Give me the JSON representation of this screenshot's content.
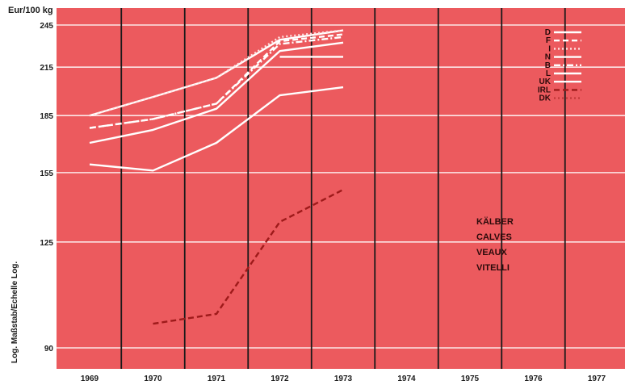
{
  "chart_data": {
    "type": "line",
    "y_unit_label": "Eur/100 kg",
    "y_scale_note": "Log. Maßstab/Echelle Log.",
    "y_scale": "log",
    "ylim": [
      85,
      252
    ],
    "y_ticks": [
      90,
      125,
      155,
      185,
      215,
      245
    ],
    "categories": [
      "1969",
      "1970",
      "1971",
      "1972",
      "1973",
      "1974",
      "1975",
      "1976",
      "1977"
    ],
    "product_labels": [
      "KÄLBER",
      "CALVES",
      "VEAUX",
      "VITELLI"
    ],
    "grid": "vertical year separators and horizontal lines at y ticks",
    "legend_position": "top-right",
    "background_color": "#ec5a5e",
    "series": [
      {
        "name": "D",
        "color": "#ffffff",
        "dash": "solid",
        "values": [
          185,
          196,
          208,
          234,
          241,
          null,
          null,
          null,
          null
        ]
      },
      {
        "name": "F",
        "color": "#ffffff",
        "dash": "dashed",
        "values": [
          178,
          183,
          192,
          233,
          238,
          null,
          null,
          null,
          null
        ]
      },
      {
        "name": "I",
        "color": "#ffe2e2",
        "dash": "dotted",
        "values": [
          185,
          196,
          208,
          236,
          241,
          null,
          null,
          null,
          null
        ]
      },
      {
        "name": "N",
        "color": "#ffffff",
        "dash": "solid",
        "values": [
          170,
          177,
          189,
          226,
          232,
          null,
          null,
          null,
          null
        ]
      },
      {
        "name": "B",
        "color": "#ffffff",
        "dash": "dashdot",
        "values": [
          178,
          183,
          192,
          231,
          236,
          null,
          null,
          null,
          null
        ]
      },
      {
        "name": "L",
        "color": "#ffffff",
        "dash": "solid",
        "values": [
          null,
          null,
          null,
          222,
          222,
          null,
          null,
          null,
          null
        ]
      },
      {
        "name": "UK",
        "color": "#ffffff",
        "dash": "solid",
        "values": [
          159,
          156,
          170,
          197,
          202,
          null,
          null,
          null,
          null
        ]
      },
      {
        "name": "IRL",
        "color": "#9e1a1a",
        "dash": "dashed",
        "values": [
          null,
          97,
          100,
          133,
          147,
          null,
          null,
          null,
          null
        ]
      },
      {
        "name": "DK",
        "color": "#c43a3a",
        "dash": "dotted",
        "values": [
          null,
          null,
          null,
          null,
          null,
          null,
          null,
          null,
          null
        ]
      }
    ]
  }
}
